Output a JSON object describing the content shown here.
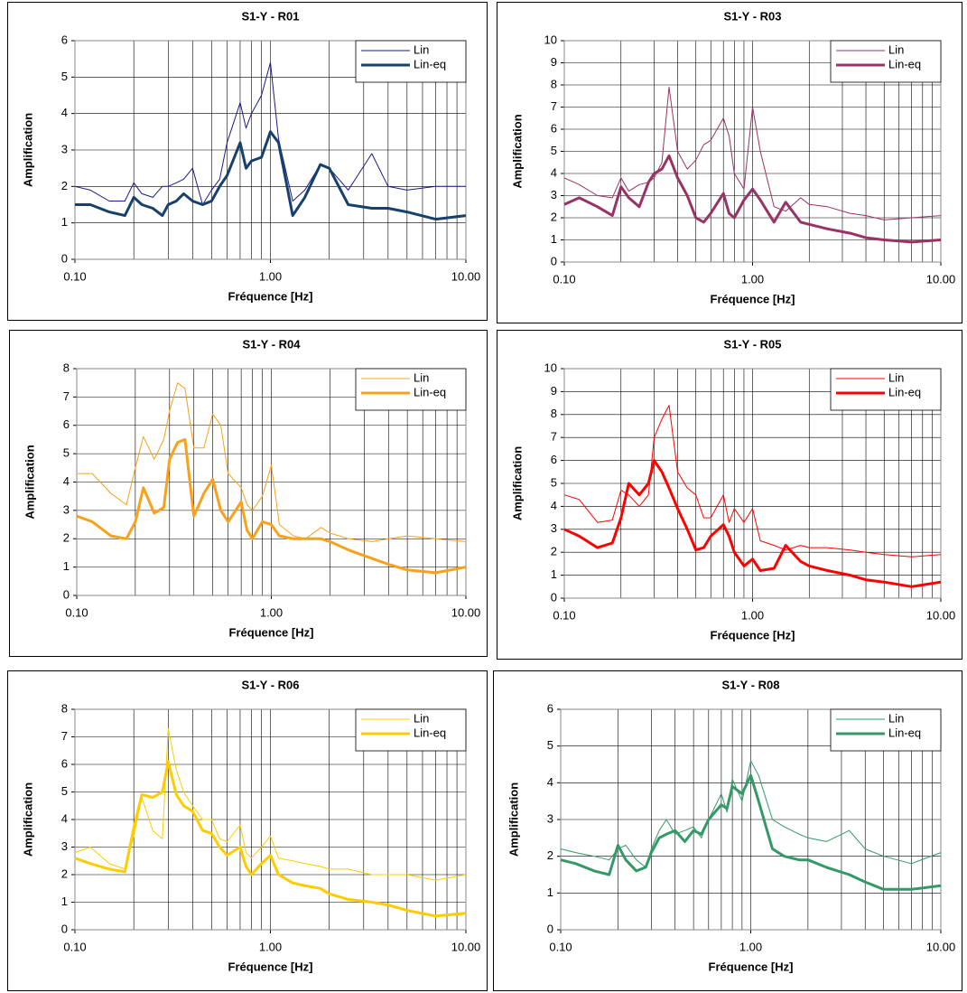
{
  "chart_data": [
    {
      "type": "line",
      "title": "S1-Y - R01",
      "x_label": "Fréquence [Hz]",
      "y_label": "Amplification",
      "x_scale": "log",
      "grid": true,
      "legend": "upper right",
      "xlim": [
        0.1,
        10
      ],
      "xticks": [
        {
          "value": 0.1,
          "label": "0.10"
        },
        {
          "value": 1,
          "label": "1.00"
        },
        {
          "value": 10,
          "label": "10.00"
        }
      ],
      "ylim": [
        0,
        6
      ],
      "yticks": [
        0,
        1,
        2,
        3,
        4,
        5,
        6
      ],
      "x": [
        0.1,
        0.12,
        0.15,
        0.18,
        0.2,
        0.22,
        0.25,
        0.28,
        0.3,
        0.33,
        0.36,
        0.4,
        0.45,
        0.5,
        0.55,
        0.6,
        0.7,
        0.75,
        0.8,
        0.9,
        1.0,
        1.1,
        1.3,
        1.5,
        1.8,
        2,
        2.5,
        3.3,
        4,
        5,
        7,
        10
      ],
      "series": [
        {
          "name": "Lin",
          "color": "#1a1a8c",
          "values": [
            2.0,
            1.9,
            1.6,
            1.6,
            2.1,
            1.8,
            1.7,
            2.0,
            2.0,
            2.1,
            2.2,
            2.5,
            1.5,
            1.9,
            2.2,
            3.2,
            4.3,
            3.6,
            4.0,
            4.5,
            5.4,
            3.3,
            1.6,
            1.9,
            2.6,
            2.5,
            1.9,
            2.9,
            2.0,
            1.9,
            2.0,
            2.0
          ]
        },
        {
          "name": "Lin-eq",
          "color": "#17406d",
          "values": [
            1.5,
            1.5,
            1.3,
            1.2,
            1.7,
            1.5,
            1.4,
            1.2,
            1.5,
            1.6,
            1.8,
            1.6,
            1.5,
            1.6,
            2.0,
            2.3,
            3.2,
            2.5,
            2.7,
            2.8,
            3.5,
            3.2,
            1.2,
            1.7,
            2.6,
            2.5,
            1.5,
            1.4,
            1.4,
            1.3,
            1.1,
            1.2
          ]
        }
      ]
    },
    {
      "type": "line",
      "title": "S1-Y - R03",
      "x_label": "Fréquence [Hz]",
      "y_label": "Amplification",
      "x_scale": "log",
      "grid": true,
      "legend": "upper right",
      "xlim": [
        0.1,
        10
      ],
      "xticks": [
        {
          "value": 0.1,
          "label": "0.10"
        },
        {
          "value": 1,
          "label": "1.00"
        },
        {
          "value": 10,
          "label": "10.00"
        }
      ],
      "ylim": [
        0,
        10
      ],
      "yticks": [
        0,
        1,
        2,
        3,
        4,
        5,
        6,
        7,
        8,
        9,
        10
      ],
      "x": [
        0.1,
        0.12,
        0.15,
        0.18,
        0.2,
        0.22,
        0.25,
        0.28,
        0.3,
        0.33,
        0.36,
        0.4,
        0.45,
        0.5,
        0.55,
        0.6,
        0.7,
        0.75,
        0.8,
        0.9,
        1.0,
        1.1,
        1.3,
        1.5,
        1.8,
        2,
        2.5,
        3.3,
        4,
        5,
        7,
        10
      ],
      "series": [
        {
          "name": "Lin",
          "color": "#993366",
          "values": [
            3.8,
            3.5,
            3.0,
            2.9,
            3.8,
            3.2,
            3.5,
            3.6,
            3.8,
            4.5,
            7.9,
            5.0,
            4.2,
            4.6,
            5.3,
            5.5,
            6.5,
            5.7,
            4.0,
            3.3,
            7.0,
            5.0,
            2.5,
            2.3,
            2.9,
            2.6,
            2.5,
            2.2,
            2.1,
            1.9,
            2.0,
            2.1
          ]
        },
        {
          "name": "Lin-eq",
          "color": "#993366",
          "values": [
            2.6,
            2.9,
            2.5,
            2.1,
            3.4,
            2.9,
            2.5,
            3.6,
            4.0,
            4.2,
            4.8,
            3.8,
            3.0,
            2.0,
            1.8,
            2.2,
            3.1,
            2.2,
            2.0,
            2.8,
            3.3,
            2.8,
            1.8,
            2.7,
            1.8,
            1.7,
            1.5,
            1.3,
            1.1,
            1.0,
            0.9,
            1.0
          ]
        }
      ]
    },
    {
      "type": "line",
      "title": "S1-Y - R04",
      "x_label": "Fréquence [Hz]",
      "y_label": "Amplification",
      "x_scale": "log",
      "grid": true,
      "legend": "upper right",
      "xlim": [
        0.1,
        10
      ],
      "xticks": [
        {
          "value": 0.1,
          "label": "0.10"
        },
        {
          "value": 1,
          "label": "1.00"
        },
        {
          "value": 10,
          "label": "10.00"
        }
      ],
      "ylim": [
        0,
        8
      ],
      "yticks": [
        0,
        1,
        2,
        3,
        4,
        5,
        6,
        7,
        8
      ],
      "x": [
        0.1,
        0.12,
        0.15,
        0.18,
        0.2,
        0.22,
        0.25,
        0.28,
        0.3,
        0.33,
        0.36,
        0.4,
        0.45,
        0.5,
        0.55,
        0.6,
        0.7,
        0.75,
        0.8,
        0.9,
        1.0,
        1.1,
        1.3,
        1.5,
        1.8,
        2,
        2.5,
        3.3,
        4,
        5,
        7,
        10
      ],
      "series": [
        {
          "name": "Lin",
          "color": "#f9a11b",
          "values": [
            4.3,
            4.3,
            3.6,
            3.2,
            4.5,
            5.6,
            4.8,
            5.5,
            6.5,
            7.5,
            7.3,
            5.2,
            5.2,
            6.4,
            6.0,
            4.3,
            3.8,
            3.2,
            3.0,
            3.5,
            4.6,
            2.5,
            2.1,
            2.0,
            2.4,
            2.2,
            2.0,
            1.9,
            2.0,
            2.1,
            2.0,
            1.9
          ]
        },
        {
          "name": "Lin-eq",
          "color": "#f9a11b",
          "values": [
            2.8,
            2.6,
            2.1,
            2.0,
            2.6,
            3.8,
            2.9,
            3.1,
            4.8,
            5.4,
            5.5,
            2.8,
            3.6,
            4.1,
            3.0,
            2.6,
            3.3,
            2.3,
            2.0,
            2.6,
            2.5,
            2.1,
            2.0,
            2.0,
            2.0,
            1.9,
            1.6,
            1.3,
            1.1,
            0.9,
            0.8,
            1.0
          ]
        }
      ]
    },
    {
      "type": "line",
      "title": "S1-Y - R05",
      "x_label": "Fréquence [Hz]",
      "y_label": "Amplification",
      "x_scale": "log",
      "grid": true,
      "legend": "upper right",
      "xlim": [
        0.1,
        10
      ],
      "xticks": [
        {
          "value": 0.1,
          "label": "0.10"
        },
        {
          "value": 1,
          "label": "1.00"
        },
        {
          "value": 10,
          "label": "10.00"
        }
      ],
      "ylim": [
        0,
        10
      ],
      "yticks": [
        0,
        1,
        2,
        3,
        4,
        5,
        6,
        7,
        8,
        9,
        10
      ],
      "x": [
        0.1,
        0.12,
        0.15,
        0.18,
        0.2,
        0.22,
        0.25,
        0.28,
        0.3,
        0.33,
        0.36,
        0.4,
        0.45,
        0.5,
        0.55,
        0.6,
        0.7,
        0.75,
        0.8,
        0.9,
        1.0,
        1.1,
        1.3,
        1.5,
        1.8,
        2,
        2.5,
        3.3,
        4,
        5,
        7,
        10
      ],
      "series": [
        {
          "name": "Lin",
          "color": "#ff0000",
          "values": [
            4.5,
            4.3,
            3.3,
            3.4,
            4.7,
            4.5,
            4.0,
            4.5,
            7.0,
            7.8,
            8.4,
            5.5,
            4.8,
            4.5,
            3.5,
            3.5,
            4.5,
            3.3,
            3.9,
            3.3,
            3.9,
            2.5,
            2.3,
            2.1,
            2.3,
            2.2,
            2.2,
            2.1,
            2.0,
            1.9,
            1.8,
            1.9
          ]
        },
        {
          "name": "Lin-eq",
          "color": "#ff0000",
          "values": [
            3.0,
            2.7,
            2.2,
            2.4,
            3.5,
            5.0,
            4.5,
            5.0,
            6.0,
            5.5,
            4.8,
            3.9,
            3.0,
            2.1,
            2.2,
            2.7,
            3.2,
            2.7,
            2.0,
            1.4,
            1.7,
            1.2,
            1.3,
            2.3,
            1.6,
            1.4,
            1.2,
            1.0,
            0.8,
            0.7,
            0.5,
            0.7
          ]
        }
      ]
    },
    {
      "type": "line",
      "title": "S1-Y - R06",
      "x_label": "Fréquence [Hz]",
      "y_label": "Amplification",
      "x_scale": "log",
      "grid": true,
      "legend": "upper right",
      "xlim": [
        0.1,
        10
      ],
      "xticks": [
        {
          "value": 0.1,
          "label": "0.10"
        },
        {
          "value": 1,
          "label": "1.00"
        },
        {
          "value": 10,
          "label": "10.00"
        }
      ],
      "ylim": [
        0,
        8
      ],
      "yticks": [
        0,
        1,
        2,
        3,
        4,
        5,
        6,
        7,
        8
      ],
      "x": [
        0.1,
        0.12,
        0.15,
        0.18,
        0.2,
        0.22,
        0.25,
        0.28,
        0.3,
        0.33,
        0.36,
        0.4,
        0.45,
        0.5,
        0.55,
        0.6,
        0.7,
        0.75,
        0.8,
        0.9,
        1.0,
        1.1,
        1.3,
        1.5,
        1.8,
        2,
        2.5,
        3.3,
        4,
        5,
        7,
        10
      ],
      "series": [
        {
          "name": "Lin",
          "color": "#ffcc00",
          "values": [
            2.8,
            3.0,
            2.4,
            2.2,
            3.4,
            4.8,
            3.6,
            3.3,
            7.3,
            5.8,
            5.0,
            4.5,
            4.0,
            4.0,
            3.3,
            3.2,
            3.8,
            2.8,
            2.6,
            3.0,
            3.4,
            2.6,
            2.5,
            2.4,
            2.3,
            2.2,
            2.2,
            2.0,
            2.0,
            2.0,
            1.8,
            2.0
          ]
        },
        {
          "name": "Lin-eq",
          "color": "#ffcc00",
          "values": [
            2.6,
            2.4,
            2.2,
            2.1,
            3.7,
            4.9,
            4.8,
            5.0,
            6.1,
            4.9,
            4.5,
            4.3,
            3.6,
            3.5,
            3.0,
            2.7,
            3.0,
            2.3,
            2.0,
            2.4,
            2.7,
            2.0,
            1.7,
            1.6,
            1.5,
            1.3,
            1.1,
            1.0,
            0.9,
            0.7,
            0.5,
            0.6
          ]
        }
      ]
    },
    {
      "type": "line",
      "title": "S1-Y - R08",
      "x_label": "Fréquence [Hz]",
      "y_label": "Amplification",
      "x_scale": "log",
      "grid": true,
      "legend": "upper right",
      "xlim": [
        0.1,
        10
      ],
      "xticks": [
        {
          "value": 0.1,
          "label": "0.10"
        },
        {
          "value": 1,
          "label": "1.00"
        },
        {
          "value": 10,
          "label": "10.00"
        }
      ],
      "ylim": [
        0,
        6
      ],
      "yticks": [
        0,
        1,
        2,
        3,
        4,
        5,
        6
      ],
      "x": [
        0.1,
        0.12,
        0.15,
        0.18,
        0.2,
        0.22,
        0.25,
        0.28,
        0.3,
        0.33,
        0.36,
        0.4,
        0.45,
        0.5,
        0.55,
        0.6,
        0.7,
        0.75,
        0.8,
        0.9,
        1.0,
        1.1,
        1.3,
        1.5,
        1.8,
        2,
        2.5,
        3.3,
        4,
        5,
        7,
        10
      ],
      "series": [
        {
          "name": "Lin",
          "color": "#339966",
          "values": [
            2.2,
            2.1,
            2.0,
            1.9,
            2.2,
            2.3,
            1.9,
            1.7,
            2.2,
            2.7,
            3.0,
            2.6,
            2.7,
            2.8,
            2.5,
            3.0,
            3.7,
            3.2,
            4.1,
            3.5,
            4.6,
            4.2,
            3.0,
            2.8,
            2.6,
            2.5,
            2.4,
            2.7,
            2.2,
            2.0,
            1.8,
            2.1
          ]
        },
        {
          "name": "Lin-eq",
          "color": "#339966",
          "values": [
            1.9,
            1.8,
            1.6,
            1.5,
            2.3,
            1.9,
            1.6,
            1.7,
            2.1,
            2.5,
            2.6,
            2.7,
            2.4,
            2.7,
            2.6,
            3.0,
            3.4,
            3.3,
            3.9,
            3.7,
            4.2,
            3.5,
            2.2,
            2.0,
            1.9,
            1.9,
            1.7,
            1.5,
            1.3,
            1.1,
            1.1,
            1.2
          ]
        }
      ]
    }
  ]
}
